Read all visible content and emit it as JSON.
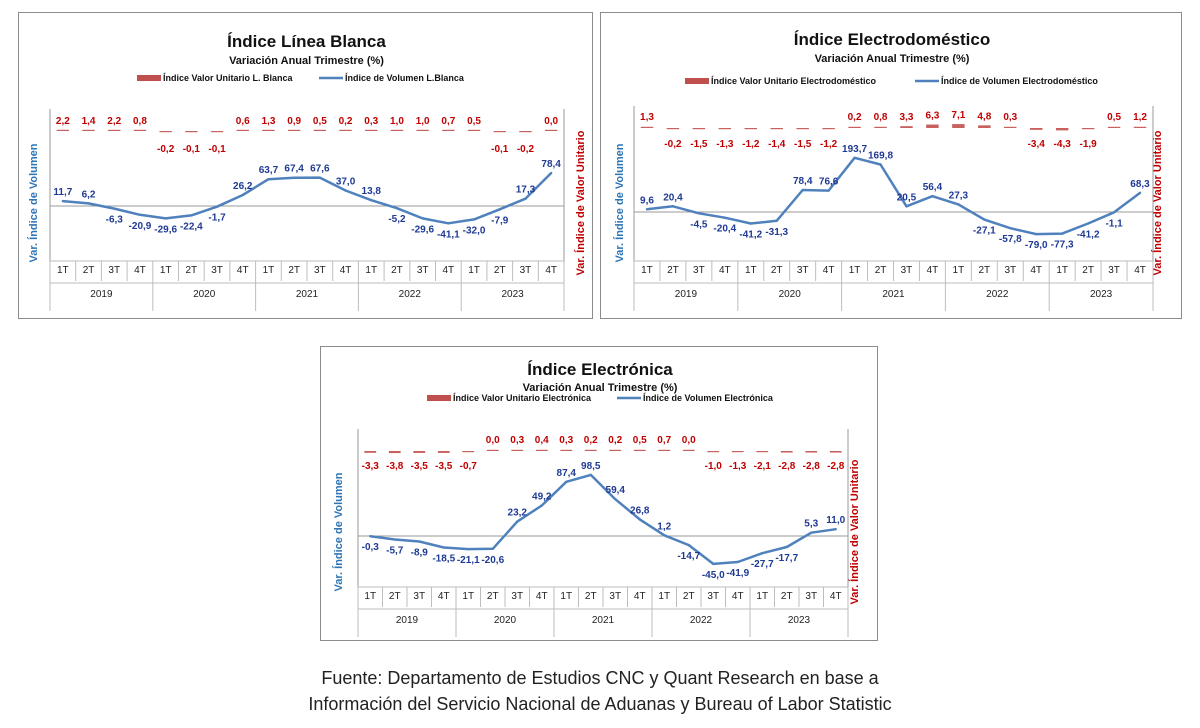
{
  "colors": {
    "volume": "#4f81bd",
    "unit_value": "#c0504d",
    "volume_label": "#1f3a93",
    "unit_value_label": "#c00000",
    "axis_title_left": "#2e75b6",
    "axis_title_right": "#c00000"
  },
  "source": {
    "line1": "Fuente: Departamento de Estudios CNC y Quant Research en base a",
    "line2": "Información del Servicio Nacional de Aduanas y Bureau of Labor Statistic"
  },
  "chart_data": [
    {
      "type": "line",
      "title": "Índice Línea Blanca",
      "subtitle": "Variación Anual Trimestre  (%)",
      "ylabel_left": "Var. Índice de Volumen",
      "ylabel_right": "Var. Índice de Valor Unitario",
      "quarters": [
        "1T",
        "2T",
        "3T",
        "4T",
        "1T",
        "2T",
        "3T",
        "4T",
        "1T",
        "2T",
        "3T",
        "4T",
        "1T",
        "2T",
        "3T",
        "4T",
        "1T",
        "2T",
        "3T",
        "4T"
      ],
      "years": [
        "2019",
        "2020",
        "2021",
        "2022",
        "2023"
      ],
      "legend": {
        "position": "top",
        "unit_value": "Índice Valor Unitario L. Blanca",
        "volume": "Índice de Volumen L.Blanca"
      },
      "series": [
        {
          "name": "Índice de Volumen L.Blanca",
          "kind": "line",
          "values": [
            11.7,
            6.2,
            -6.3,
            -20.9,
            -29.6,
            -22.4,
            -1.7,
            26.2,
            63.7,
            67.4,
            67.6,
            37.0,
            13.8,
            -5.2,
            -29.6,
            -41.1,
            -32.0,
            -7.9,
            17.3,
            78.4
          ]
        },
        {
          "name": "Índice Valor Unitario L. Blanca",
          "kind": "bar",
          "values": [
            2.2,
            1.4,
            2.2,
            0.8,
            -0.2,
            -0.1,
            -0.1,
            0.6,
            1.3,
            0.9,
            0.5,
            0.2,
            0.3,
            1.0,
            1.0,
            0.7,
            0.5,
            -0.1,
            -0.2,
            0.0
          ]
        }
      ]
    },
    {
      "type": "line",
      "title": "Índice Electrodoméstico",
      "subtitle": "Variación Anual Trimestre  (%)",
      "ylabel_left": "Var. Índice de Volumen",
      "ylabel_right": "Var. Índice de Valor Unitario",
      "quarters": [
        "1T",
        "2T",
        "3T",
        "4T",
        "1T",
        "2T",
        "3T",
        "4T",
        "1T",
        "2T",
        "3T",
        "4T",
        "1T",
        "2T",
        "3T",
        "4T",
        "1T",
        "2T",
        "3T",
        "4T"
      ],
      "years": [
        "2019",
        "2020",
        "2021",
        "2022",
        "2023"
      ],
      "legend": {
        "position": "top",
        "unit_value": "Índice Valor Unitario Electrodoméstico",
        "volume": "Índice de Volumen Electrodoméstico"
      },
      "series": [
        {
          "name": "Índice de Volumen Electrodoméstico",
          "kind": "line",
          "values": [
            9.6,
            20.4,
            -4.5,
            -20.4,
            -41.2,
            -31.3,
            78.4,
            76.6,
            193.7,
            169.8,
            20.5,
            56.4,
            27.3,
            -27.1,
            -57.8,
            -79.0,
            -77.3,
            -41.2,
            -1.1,
            68.3
          ]
        },
        {
          "name": "Índice Valor Unitario Electrodoméstico",
          "kind": "bar",
          "values": [
            1.3,
            -0.2,
            -1.5,
            -1.3,
            -1.2,
            -1.4,
            -1.5,
            -1.2,
            0.2,
            0.8,
            3.3,
            6.3,
            7.1,
            4.8,
            0.3,
            -3.4,
            -4.3,
            -1.9,
            0.5,
            1.2
          ]
        }
      ]
    },
    {
      "type": "line",
      "title": "Índice Electrónica",
      "subtitle": "Variación Anual Trimestre  (%)",
      "ylabel_left": "Var. Índice de Volumen",
      "ylabel_right": "Var. Índice de Valor Unitario",
      "quarters": [
        "1T",
        "2T",
        "3T",
        "4T",
        "1T",
        "2T",
        "3T",
        "4T",
        "1T",
        "2T",
        "3T",
        "4T",
        "1T",
        "2T",
        "3T",
        "4T",
        "1T",
        "2T",
        "3T",
        "4T"
      ],
      "years": [
        "2019",
        "2020",
        "2021",
        "2022",
        "2023"
      ],
      "legend": {
        "position": "top",
        "unit_value": "Índice Valor Unitario Electrónica",
        "volume": "Índice de Volumen Electrónica"
      },
      "series": [
        {
          "name": "Índice de Volumen Electrónica",
          "kind": "line",
          "values": [
            -0.3,
            -5.7,
            -8.9,
            -18.5,
            -21.1,
            -20.6,
            23.2,
            49.2,
            87.4,
            98.5,
            59.4,
            26.8,
            1.2,
            -14.7,
            -45.0,
            -41.9,
            -27.7,
            -17.7,
            5.3,
            11.0
          ]
        },
        {
          "name": "Índice Valor Unitario Electrónica",
          "kind": "bar",
          "values": [
            -3.3,
            -3.8,
            -3.5,
            -3.5,
            -0.7,
            0.0,
            0.3,
            0.4,
            0.3,
            0.2,
            0.2,
            0.5,
            0.7,
            0.0,
            -1.0,
            -1.3,
            -2.1,
            -2.8,
            -2.8,
            -2.8
          ]
        }
      ]
    }
  ]
}
